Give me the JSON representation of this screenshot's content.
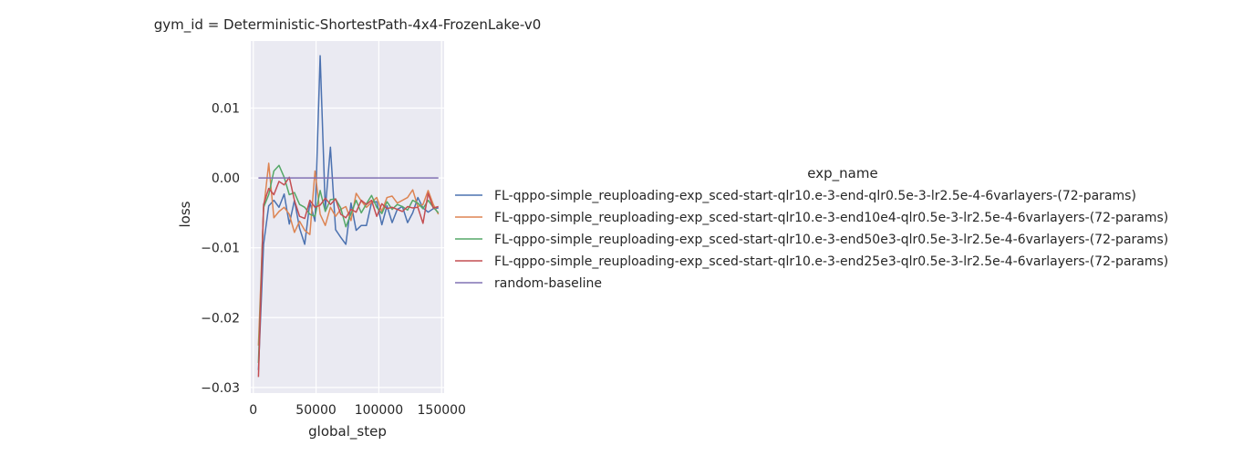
{
  "chart_data": {
    "type": "line",
    "title": "gym_id = Deterministic-ShortestPath-4x4-FrozenLake-v0",
    "xlabel": "global_step",
    "ylabel": "loss",
    "xlim": [
      -2000,
      152000
    ],
    "ylim": [
      -0.0308,
      0.0196
    ],
    "x_ticks": [
      0,
      50000,
      100000,
      150000
    ],
    "x_tick_labels": [
      "0",
      "50000",
      "100000",
      "150000"
    ],
    "y_ticks": [
      -0.03,
      -0.02,
      -0.01,
      0.0,
      0.01
    ],
    "y_tick_labels": [
      "−0.03",
      "−0.02",
      "−0.01",
      "0.00",
      "0.01"
    ],
    "grid": true,
    "legend_title": "exp_name",
    "legend_position": "right",
    "x": [
      4096,
      8192,
      12288,
      16384,
      20480,
      24576,
      28672,
      32768,
      36864,
      40960,
      45056,
      49152,
      53248,
      57344,
      61440,
      65536,
      69632,
      73728,
      77824,
      81920,
      86016,
      90112,
      94208,
      98304,
      102400,
      106496,
      110592,
      114688,
      118784,
      122880,
      126976,
      131072,
      135168,
      139264,
      143360,
      147456
    ],
    "series": [
      {
        "name": "FL-qppo-simple_reuploading-exp_sced-start-qlr10.e-3-end-qlr0.5e-3-lr2.5e-4-6varlayers-(72-params)",
        "color": "#4c72b0",
        "values": [
          -0.0275,
          -0.0095,
          -0.004,
          -0.0032,
          -0.0042,
          -0.0023,
          -0.0066,
          -0.0032,
          -0.0072,
          -0.0095,
          -0.0035,
          -0.0062,
          0.0175,
          -0.0045,
          0.0044,
          -0.0074,
          -0.0085,
          -0.0095,
          -0.0036,
          -0.0075,
          -0.0068,
          -0.0068,
          -0.0035,
          -0.0034,
          -0.0067,
          -0.004,
          -0.0064,
          -0.0045,
          -0.0041,
          -0.0064,
          -0.005,
          -0.0028,
          -0.0043,
          -0.0049,
          -0.0044,
          -0.0043
        ]
      },
      {
        "name": "FL-qppo-simple_reuploading-exp_sced-start-qlr10.e-3-end10e4-qlr0.5e-3-lr2.5e-4-6varlayers-(72-params)",
        "color": "#dd8452",
        "values": [
          -0.024,
          -0.0045,
          0.0021,
          -0.0057,
          -0.0048,
          -0.0042,
          -0.0052,
          -0.0078,
          -0.0062,
          -0.0075,
          -0.0081,
          0.001,
          -0.0052,
          -0.0068,
          -0.0042,
          -0.0055,
          -0.0045,
          -0.0041,
          -0.0061,
          -0.0022,
          -0.0033,
          -0.0042,
          -0.0035,
          -0.0028,
          -0.0048,
          -0.0028,
          -0.0026,
          -0.0036,
          -0.0032,
          -0.0028,
          -0.0017,
          -0.0041,
          -0.0038,
          -0.0018,
          -0.0038,
          -0.0052
        ]
      },
      {
        "name": "FL-qppo-simple_reuploading-exp_sced-start-qlr10.e-3-end50e3-qlr0.5e-3-lr2.5e-4-6varlayers-(72-params)",
        "color": "#55a868",
        "values": [
          -0.0265,
          -0.0042,
          -0.0024,
          0.001,
          0.0018,
          0.0001,
          -0.0024,
          -0.0021,
          -0.0038,
          -0.0042,
          -0.0052,
          -0.0055,
          -0.0018,
          -0.0048,
          -0.0031,
          -0.003,
          -0.0043,
          -0.007,
          -0.0051,
          -0.0032,
          -0.005,
          -0.0037,
          -0.0025,
          -0.0042,
          -0.0051,
          -0.0034,
          -0.0045,
          -0.0038,
          -0.0041,
          -0.0046,
          -0.0032,
          -0.0036,
          -0.0044,
          -0.0032,
          -0.0042,
          -0.005
        ]
      },
      {
        "name": "FL-qppo-simple_reuploading-exp_sced-start-qlr10.e-3-end25e3-qlr0.5e-3-lr2.5e-4-6varlayers-(72-params)",
        "color": "#c44e52",
        "values": [
          -0.0285,
          -0.0038,
          -0.0015,
          -0.0024,
          -0.0005,
          -0.001,
          0.0001,
          -0.0032,
          -0.0055,
          -0.0058,
          -0.0032,
          -0.0042,
          -0.0039,
          -0.0029,
          -0.0038,
          -0.003,
          -0.0052,
          -0.0057,
          -0.0045,
          -0.0049,
          -0.0032,
          -0.0038,
          -0.0032,
          -0.0055,
          -0.0037,
          -0.0044,
          -0.0042,
          -0.0045,
          -0.0048,
          -0.0041,
          -0.0043,
          -0.0042,
          -0.0065,
          -0.0022,
          -0.0043,
          -0.0041
        ]
      },
      {
        "name": "random-baseline",
        "color": "#8172b3",
        "values": [
          0.0,
          0.0,
          0.0,
          0.0,
          0.0,
          0.0,
          0.0,
          0.0,
          0.0,
          0.0,
          0.0,
          0.0,
          0.0,
          0.0,
          0.0,
          0.0,
          0.0,
          0.0,
          0.0,
          0.0,
          0.0,
          0.0,
          0.0,
          0.0,
          0.0,
          0.0,
          0.0,
          0.0,
          0.0,
          0.0,
          0.0,
          0.0,
          0.0,
          0.0,
          0.0,
          0.0
        ]
      }
    ]
  }
}
